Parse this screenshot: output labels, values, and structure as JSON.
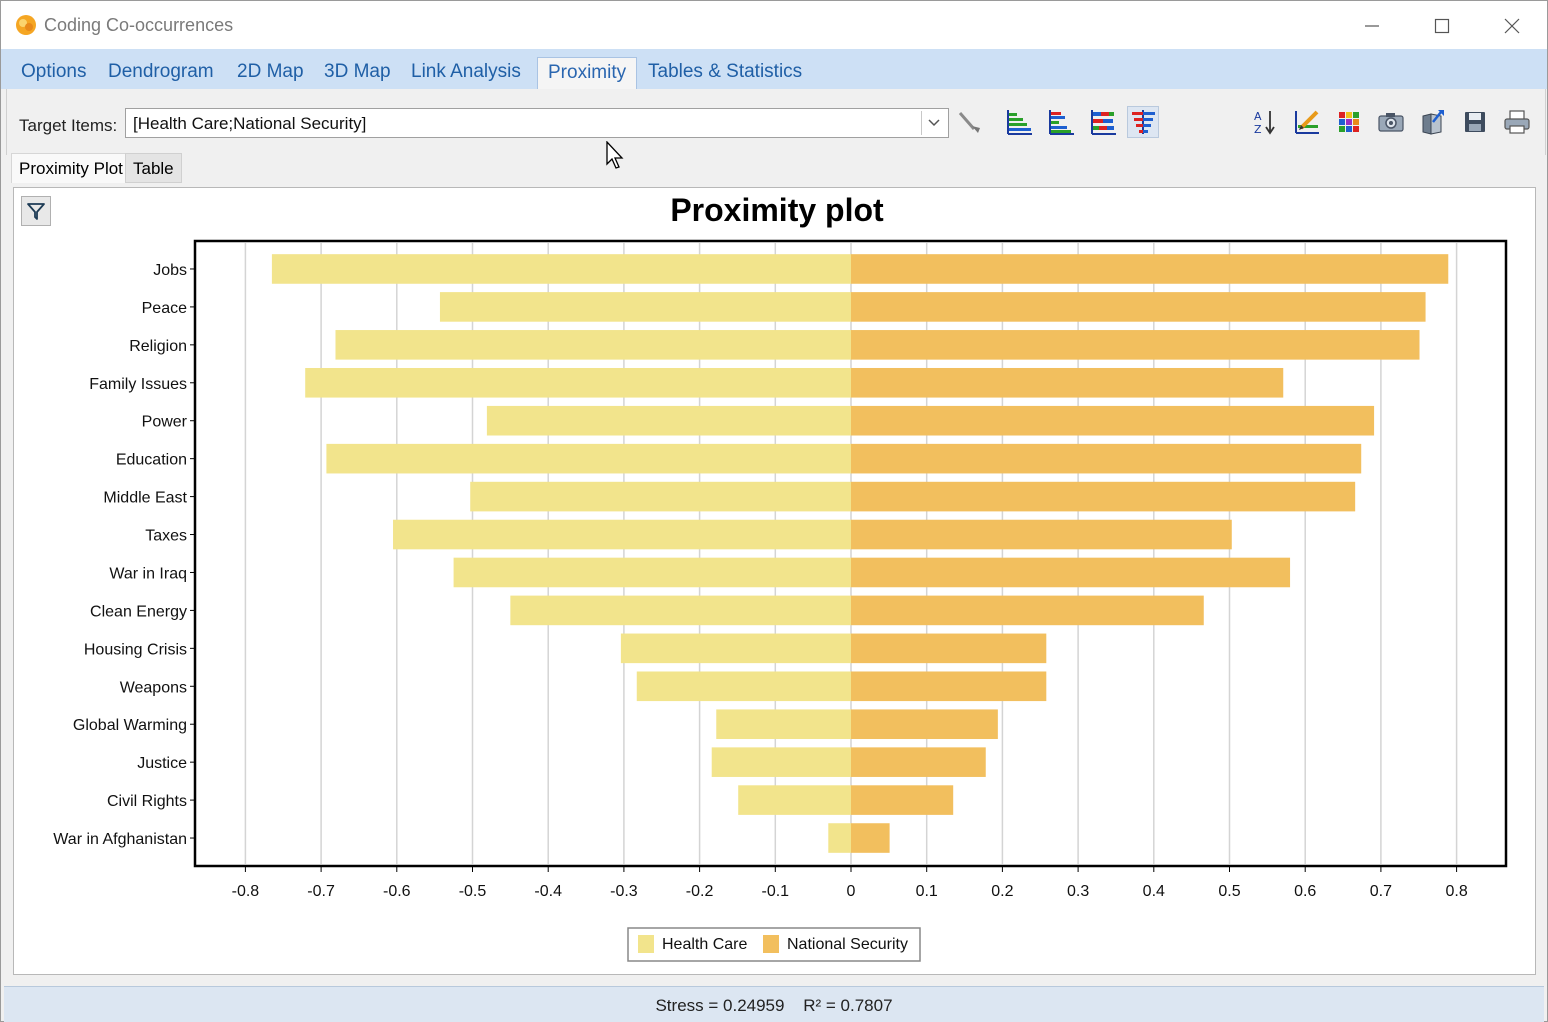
{
  "window": {
    "title": "Coding Co-occurrences"
  },
  "tabs": [
    "Options",
    "Dendrogram",
    "2D Map",
    "3D Map",
    "Link Analysis",
    "Proximity",
    "Tables & Statistics"
  ],
  "active_tab": "Proximity",
  "toolbar": {
    "target_label": "Target Items:",
    "target_value": "[Health Care;National Security]",
    "icons": [
      "selection-brush-icon",
      "sort-bars-icon",
      "grouped-bars-icon",
      "color-bars-icon",
      "proximity-bars-icon",
      "sort-az-icon",
      "edit-chart-icon",
      "color-grid-icon",
      "camera-icon",
      "export-icon",
      "save-icon",
      "print-icon"
    ]
  },
  "subtabs": [
    "Proximity Plot",
    "Table"
  ],
  "active_subtab": "Proximity Plot",
  "chart_data": {
    "type": "bar",
    "orientation": "horizontal",
    "title": "Proximity plot",
    "categories": [
      "Jobs",
      "Peace",
      "Religion",
      "Family Issues",
      "Power",
      "Education",
      "Middle East",
      "Taxes",
      "War in Iraq",
      "Clean Energy",
      "Housing Crisis",
      "Weapons",
      "Global Warming",
      "Justice",
      "Civil Rights",
      "War in Afghanistan"
    ],
    "series": [
      {
        "name": "Health Care",
        "color": "#f2e48c",
        "values": [
          -0.765,
          -0.543,
          -0.681,
          -0.721,
          -0.481,
          -0.693,
          -0.503,
          -0.605,
          -0.525,
          -0.45,
          -0.304,
          -0.283,
          -0.178,
          -0.184,
          -0.149,
          -0.03
        ]
      },
      {
        "name": "National Security",
        "color": "#f2bf5e",
        "values": [
          0.789,
          0.759,
          0.751,
          0.571,
          0.691,
          0.674,
          0.666,
          0.503,
          0.58,
          0.466,
          0.258,
          0.258,
          0.194,
          0.178,
          0.135,
          0.051
        ]
      }
    ],
    "xlim": [
      -0.87,
      0.87
    ],
    "xticks": [
      -0.8,
      -0.7,
      -0.6,
      -0.5,
      -0.4,
      -0.3,
      -0.2,
      -0.1,
      0,
      0.1,
      0.2,
      0.3,
      0.4,
      0.5,
      0.6,
      0.7,
      0.8
    ],
    "grid": "vertical",
    "legend": "bottom-center"
  },
  "status": {
    "stress": "Stress = 0.24959",
    "r2": "R² = 0.7807"
  }
}
